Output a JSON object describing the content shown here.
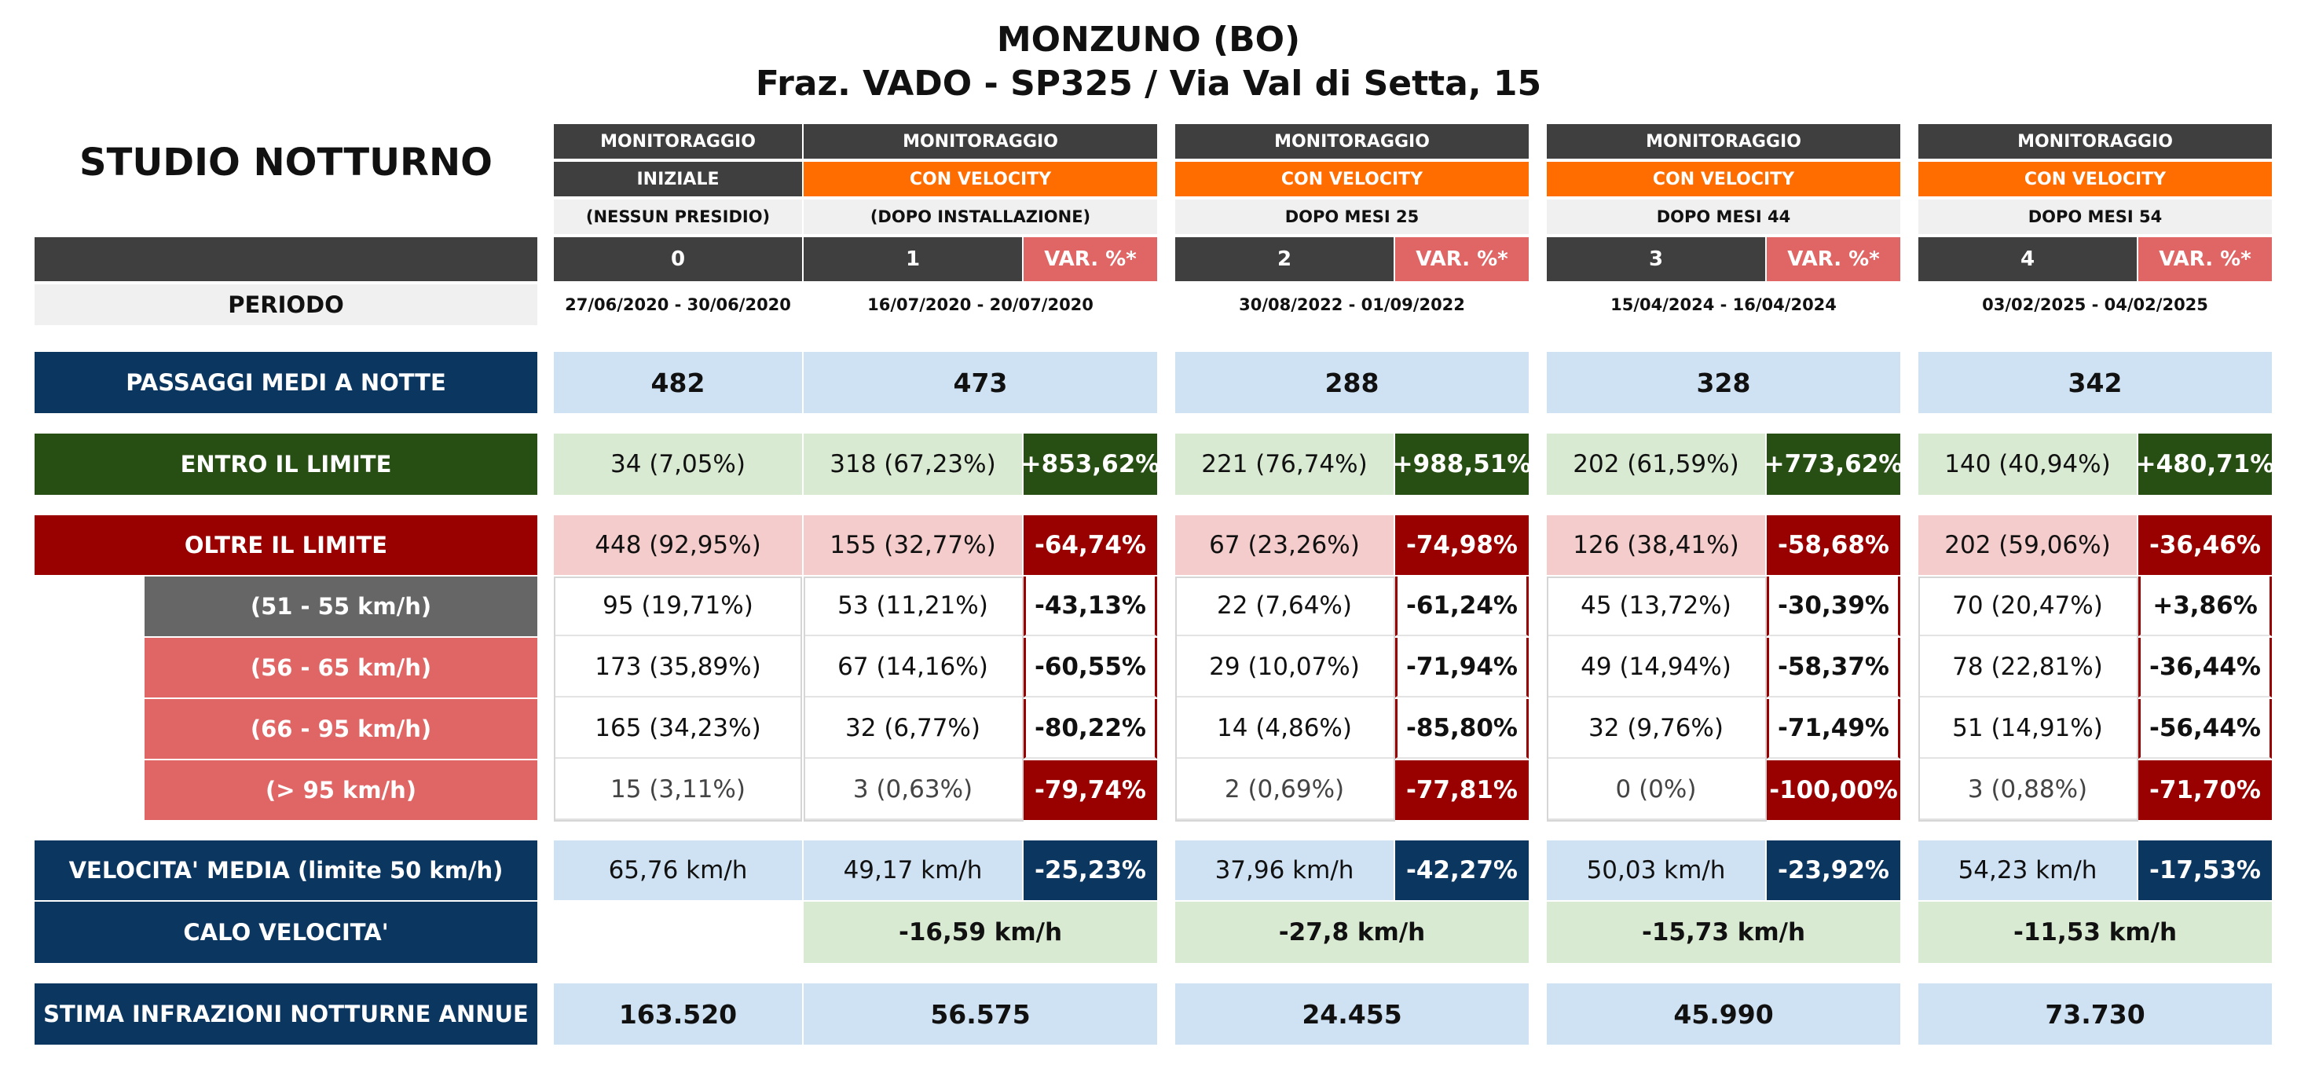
{
  "header": {
    "title_line1": "MONZUNO (BO)",
    "title_line2": "Fraz. VADO - SP325 / Via Val di Setta, 15",
    "study_title": "STUDIO NOTTURNO"
  },
  "colors": {
    "navy": "#0b3660",
    "dark_green": "#274e13",
    "dark_red": "#990000",
    "orange": "#ff6d00",
    "pink": "#e06666",
    "light_blue": "#cfe2f3",
    "light_green": "#d9ead3",
    "light_pink": "#f4cccc"
  },
  "row_labels": {
    "periodo": "PERIODO",
    "passaggi": "PASSAGGI MEDI A NOTTE",
    "entro": "ENTRO IL LIMITE",
    "oltre": "OLTRE IL LIMITE",
    "band_51_55": "(51 - 55 km/h)",
    "band_56_65": "(56 - 65 km/h)",
    "band_66_95": "(66 - 95 km/h)",
    "band_95": "(> 95 km/h)",
    "velocita": "VELOCITA' MEDIA (limite 50 km/h)",
    "calo": "CALO VELOCITA'",
    "stima": "STIMA INFRAZIONI NOTTURNE ANNUE"
  },
  "var_label": "VAR. %*",
  "columns": [
    {
      "monitoraggio": "MONITORAGGIO",
      "tipo": "INIZIALE",
      "nota": "(NESSUN PRESIDIO)",
      "numero": "0",
      "periodo": "27/06/2020 - 30/06/2020",
      "passaggi": "482",
      "entro": "34 (7,05%)",
      "oltre": "448 (92,95%)",
      "b1": "95 (19,71%)",
      "b2": "173 (35,89%)",
      "b3": "165 (34,23%)",
      "b4": "15 (3,11%)",
      "velocita": "65,76 km/h",
      "calo": "",
      "stima": "163.520"
    },
    {
      "monitoraggio": "MONITORAGGIO",
      "tipo": "CON VELOCITY",
      "nota": "(DOPO INSTALLAZIONE)",
      "numero": "1",
      "periodo": "16/07/2020 - 20/07/2020",
      "passaggi": "473",
      "entro": "318 (67,23%)",
      "entro_var": "+853,62%",
      "oltre": "155 (32,77%)",
      "oltre_var": "-64,74%",
      "b1": "53 (11,21%)",
      "b1_var": "-43,13%",
      "b2": "67 (14,16%)",
      "b2_var": "-60,55%",
      "b3": "32 (6,77%)",
      "b3_var": "-80,22%",
      "b4": "3 (0,63%)",
      "b4_var": "-79,74%",
      "velocita": "49,17 km/h",
      "velocita_var": "-25,23%",
      "calo": "-16,59 km/h",
      "stima": "56.575"
    },
    {
      "monitoraggio": "MONITORAGGIO",
      "tipo": "CON VELOCITY",
      "nota": "DOPO MESI  25",
      "numero": "2",
      "periodo": "30/08/2022 - 01/09/2022",
      "passaggi": "288",
      "entro": "221 (76,74%)",
      "entro_var": "+988,51%",
      "oltre": "67 (23,26%)",
      "oltre_var": "-74,98%",
      "b1": "22 (7,64%)",
      "b1_var": "-61,24%",
      "b2": "29 (10,07%)",
      "b2_var": "-71,94%",
      "b3": "14 (4,86%)",
      "b3_var": "-85,80%",
      "b4": "2 (0,69%)",
      "b4_var": "-77,81%",
      "velocita": "37,96 km/h",
      "velocita_var": "-42,27%",
      "calo": "-27,8 km/h",
      "stima": "24.455"
    },
    {
      "monitoraggio": "MONITORAGGIO",
      "tipo": "CON VELOCITY",
      "nota": "DOPO MESI  44",
      "numero": "3",
      "periodo": "15/04/2024 - 16/04/2024",
      "passaggi": "328",
      "entro": "202 (61,59%)",
      "entro_var": "+773,62%",
      "oltre": "126 (38,41%)",
      "oltre_var": "-58,68%",
      "b1": "45 (13,72%)",
      "b1_var": "-30,39%",
      "b2": "49 (14,94%)",
      "b2_var": "-58,37%",
      "b3": "32 (9,76%)",
      "b3_var": "-71,49%",
      "b4": "0 (0%)",
      "b4_var": "-100,00%",
      "velocita": "50,03 km/h",
      "velocita_var": "-23,92%",
      "calo": "-15,73 km/h",
      "stima": "45.990"
    },
    {
      "monitoraggio": "MONITORAGGIO",
      "tipo": "CON VELOCITY",
      "nota": "DOPO MESI  54",
      "numero": "4",
      "periodo": "03/02/2025 - 04/02/2025",
      "passaggi": "342",
      "entro": "140 (40,94%)",
      "entro_var": "+480,71%",
      "oltre": "202 (59,06%)",
      "oltre_var": "-36,46%",
      "b1": "70 (20,47%)",
      "b1_var": "+3,86%",
      "b2": "78 (22,81%)",
      "b2_var": "-36,44%",
      "b3": "51 (14,91%)",
      "b3_var": "-56,44%",
      "b4": "3 (0,88%)",
      "b4_var": "-71,70%",
      "velocita": "54,23 km/h",
      "velocita_var": "-17,53%",
      "calo": "-11,53 km/h",
      "stima": "73.730"
    }
  ]
}
